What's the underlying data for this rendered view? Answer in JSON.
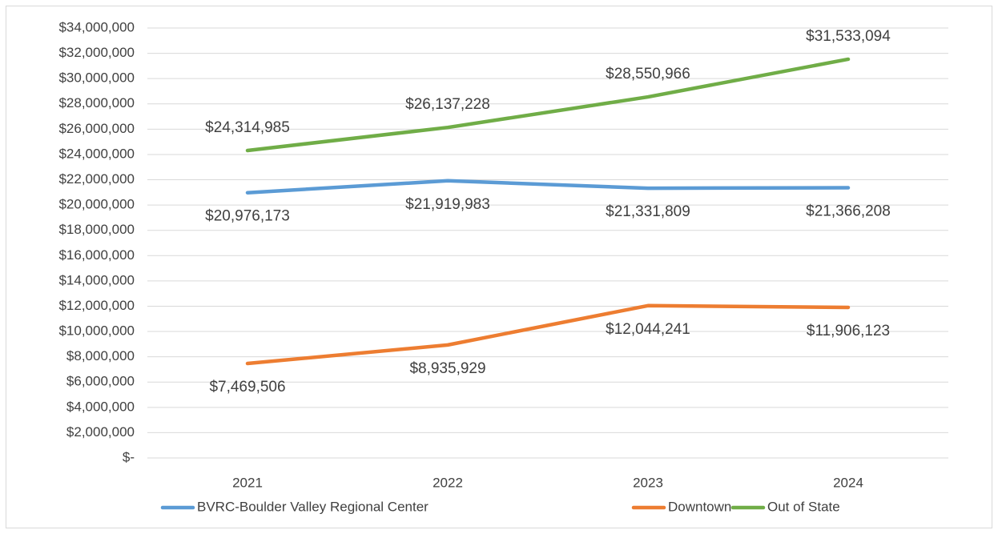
{
  "chart_data": {
    "type": "line",
    "categories": [
      "2021",
      "2022",
      "2023",
      "2024"
    ],
    "series": [
      {
        "name": "BVRC-Boulder Valley Regional Center",
        "color": "#5b9bd5",
        "values": [
          20976173,
          21919983,
          21331809,
          21366208
        ],
        "value_labels": [
          "$20,976,173",
          "$21,919,983",
          "$21,331,809",
          "$21,366,208"
        ]
      },
      {
        "name": "Downtown",
        "color": "#ed7d31",
        "values": [
          7469506,
          8935929,
          12044241,
          11906123
        ],
        "value_labels": [
          "$7,469,506",
          "$8,935,929",
          "$12,044,241",
          "$11,906,123"
        ]
      },
      {
        "name": "Out of State",
        "color": "#70ad47",
        "values": [
          24314985,
          26137228,
          28550966,
          31533094
        ],
        "value_labels": [
          "$24,314,985",
          "$26,137,228",
          "$28,550,966",
          "$31,533,094"
        ]
      }
    ],
    "ylim": [
      0,
      34000000
    ],
    "yticks": [
      {
        "value": 0,
        "label": "$-"
      },
      {
        "value": 2000000,
        "label": "$2,000,000"
      },
      {
        "value": 4000000,
        "label": "$4,000,000"
      },
      {
        "value": 6000000,
        "label": "$6,000,000"
      },
      {
        "value": 8000000,
        "label": "$8,000,000"
      },
      {
        "value": 10000000,
        "label": "$10,000,000"
      },
      {
        "value": 12000000,
        "label": "$12,000,000"
      },
      {
        "value": 14000000,
        "label": "$14,000,000"
      },
      {
        "value": 16000000,
        "label": "$16,000,000"
      },
      {
        "value": 18000000,
        "label": "$18,000,000"
      },
      {
        "value": 20000000,
        "label": "$20,000,000"
      },
      {
        "value": 22000000,
        "label": "$22,000,000"
      },
      {
        "value": 24000000,
        "label": "$24,000,000"
      },
      {
        "value": 26000000,
        "label": "$26,000,000"
      },
      {
        "value": 28000000,
        "label": "$28,000,000"
      },
      {
        "value": 30000000,
        "label": "$30,000,000"
      },
      {
        "value": 32000000,
        "label": "$32,000,000"
      },
      {
        "value": 34000000,
        "label": "$34,000,000"
      }
    ],
    "grid": true,
    "legend": "bottom"
  }
}
